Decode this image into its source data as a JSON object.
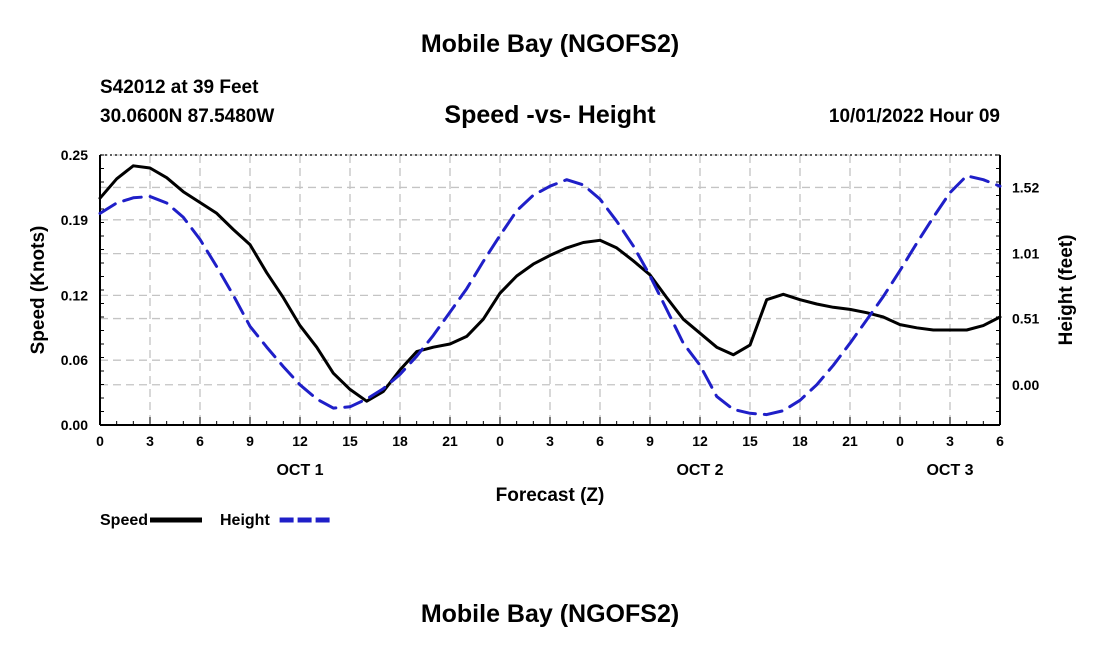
{
  "page": {
    "title": "Mobile Bay (NGOFS2)",
    "title_repeat": "Mobile Bay (NGOFS2)",
    "station": "S42012 at 39 Feet",
    "coords": "30.0600N  87.5480W",
    "datetime": "10/01/2022 Hour 09"
  },
  "chart_data": {
    "type": "line",
    "title": "Speed -vs- Height",
    "xlabel": "Forecast (Z)",
    "ylabel": "Speed (Knots)",
    "y2label": "Height (feet)",
    "x_ticks": [
      "0",
      "3",
      "6",
      "9",
      "12",
      "15",
      "18",
      "21",
      "0",
      "3",
      "6",
      "9",
      "12",
      "15",
      "18",
      "21",
      "0",
      "3",
      "6"
    ],
    "date_labels": [
      {
        "label": "OCT 1",
        "at_hour": 12
      },
      {
        "label": "OCT 2",
        "at_hour": 36
      },
      {
        "label": "OCT 3",
        "at_hour": 51
      }
    ],
    "xlim": [
      0,
      54
    ],
    "ylim": [
      0,
      0.25
    ],
    "y_ticks": [
      "0.00",
      "0.06",
      "0.12",
      "0.19",
      "0.25"
    ],
    "y2lim": [
      -0.31,
      1.77
    ],
    "y2_ticks": [
      "0.00",
      "0.51",
      "1.01",
      "1.52"
    ],
    "grid": true,
    "legend_position": "bottom-left",
    "series": [
      {
        "name": "Speed",
        "axis": "left",
        "color": "#000000",
        "dashed": false,
        "x": [
          0,
          1,
          2,
          3,
          4,
          5,
          6,
          7,
          8,
          9,
          10,
          11,
          12,
          13,
          14,
          15,
          16,
          17,
          18,
          19,
          20,
          21,
          22,
          23,
          24,
          25,
          26,
          27,
          28,
          29,
          30,
          31,
          32,
          33,
          34,
          35,
          36,
          37,
          38,
          39,
          40,
          41,
          42,
          43,
          44,
          45,
          46,
          47,
          48,
          49,
          50,
          51,
          52,
          53,
          54
        ],
        "values": [
          0.21,
          0.228,
          0.24,
          0.238,
          0.229,
          0.216,
          0.206,
          0.196,
          0.181,
          0.167,
          0.141,
          0.118,
          0.092,
          0.072,
          0.048,
          0.033,
          0.022,
          0.031,
          0.051,
          0.068,
          0.072,
          0.075,
          0.082,
          0.098,
          0.122,
          0.138,
          0.149,
          0.157,
          0.164,
          0.169,
          0.171,
          0.164,
          0.152,
          0.139,
          0.118,
          0.098,
          0.085,
          0.072,
          0.065,
          0.074,
          0.116,
          0.121,
          0.116,
          0.112,
          0.109,
          0.107,
          0.104,
          0.1,
          0.093,
          0.09,
          0.088,
          0.088,
          0.088,
          0.092,
          0.1
        ]
      },
      {
        "name": "Height",
        "axis": "right",
        "color": "#1f1fc8",
        "dashed": true,
        "x": [
          0,
          1,
          2,
          3,
          4,
          5,
          6,
          7,
          8,
          9,
          10,
          11,
          12,
          13,
          14,
          15,
          16,
          17,
          18,
          19,
          20,
          21,
          22,
          23,
          24,
          25,
          26,
          27,
          28,
          29,
          30,
          31,
          32,
          33,
          34,
          35,
          36,
          37,
          38,
          39,
          40,
          41,
          42,
          43,
          44,
          45,
          46,
          47,
          48,
          49,
          50,
          51,
          52,
          53,
          54
        ],
        "values": [
          1.32,
          1.4,
          1.44,
          1.45,
          1.4,
          1.29,
          1.12,
          0.91,
          0.69,
          0.45,
          0.29,
          0.14,
          0.0,
          -0.11,
          -0.18,
          -0.17,
          -0.11,
          -0.03,
          0.08,
          0.22,
          0.38,
          0.56,
          0.74,
          0.95,
          1.15,
          1.34,
          1.46,
          1.53,
          1.58,
          1.54,
          1.43,
          1.26,
          1.07,
          0.84,
          0.58,
          0.32,
          0.15,
          -0.09,
          -0.19,
          -0.22,
          -0.23,
          -0.2,
          -0.12,
          0.0,
          0.15,
          0.32,
          0.5,
          0.68,
          0.88,
          1.09,
          1.29,
          1.48,
          1.61,
          1.58,
          1.53
        ]
      }
    ]
  }
}
